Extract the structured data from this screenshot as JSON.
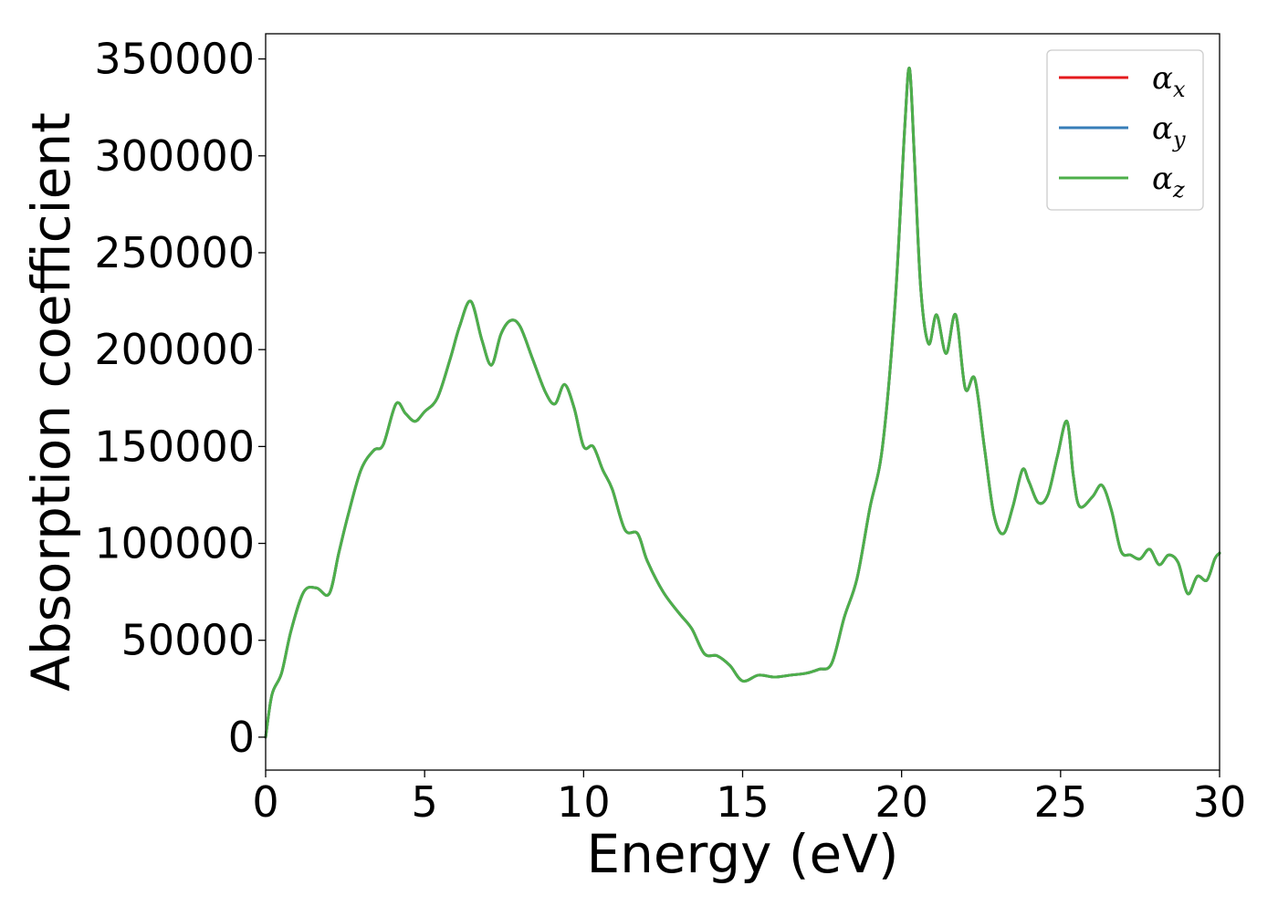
{
  "chart_data": {
    "type": "line",
    "title": "",
    "xlabel": "Energy (eV)",
    "ylabel": "Absorption coefficient",
    "xlim": [
      0,
      30
    ],
    "ylim": [
      -17000,
      363000
    ],
    "xticks": [
      0,
      5,
      10,
      15,
      20,
      25,
      30
    ],
    "xtick_labels": [
      "0",
      "5",
      "10",
      "15",
      "20",
      "25",
      "30"
    ],
    "yticks": [
      0,
      50000,
      100000,
      150000,
      200000,
      250000,
      300000,
      350000
    ],
    "ytick_labels": [
      "0",
      "50000",
      "100000",
      "150000",
      "200000",
      "250000",
      "300000",
      "350000"
    ],
    "grid": false,
    "legend_position": "top-right",
    "x": [
      0,
      0.2,
      0.5,
      0.8,
      1.2,
      1.6,
      2.0,
      2.3,
      2.6,
      3.0,
      3.4,
      3.7,
      4.1,
      4.4,
      4.7,
      5.0,
      5.4,
      5.8,
      6.1,
      6.45,
      6.8,
      7.1,
      7.4,
      7.7,
      8.0,
      8.4,
      8.8,
      9.1,
      9.4,
      9.7,
      10.0,
      10.3,
      10.6,
      10.9,
      11.3,
      11.7,
      12.0,
      12.5,
      13.0,
      13.4,
      13.8,
      14.2,
      14.6,
      15.0,
      15.5,
      16.0,
      16.5,
      17.0,
      17.4,
      17.8,
      18.2,
      18.6,
      19.0,
      19.4,
      19.8,
      20.1,
      20.25,
      20.4,
      20.6,
      20.85,
      21.1,
      21.4,
      21.7,
      22.0,
      22.3,
      22.6,
      22.9,
      23.2,
      23.5,
      23.8,
      24.0,
      24.3,
      24.6,
      24.9,
      25.2,
      25.4,
      25.6,
      26.0,
      26.3,
      26.6,
      26.9,
      27.2,
      27.5,
      27.8,
      28.1,
      28.4,
      28.7,
      29.0,
      29.3,
      29.6,
      29.85,
      30.0
    ],
    "series": [
      {
        "name": "α_x",
        "label_base": "α",
        "label_sub": "x",
        "color": "#e41a1c",
        "values": [
          0,
          22000,
          33000,
          55000,
          75000,
          77000,
          74000,
          95000,
          115000,
          138000,
          148000,
          151000,
          172000,
          167000,
          163000,
          168000,
          175000,
          195000,
          212000,
          225000,
          205000,
          192000,
          208000,
          215000,
          212000,
          195000,
          178000,
          172000,
          182000,
          170000,
          150000,
          150000,
          138000,
          128000,
          107000,
          105000,
          91000,
          75000,
          64000,
          56000,
          43000,
          42000,
          37000,
          29000,
          32000,
          31000,
          32000,
          33000,
          35000,
          38000,
          62000,
          82000,
          118000,
          150000,
          225000,
          315000,
          345000,
          300000,
          232000,
          203000,
          218000,
          198000,
          218000,
          180000,
          185000,
          150000,
          115000,
          105000,
          119000,
          138000,
          132000,
          121000,
          125000,
          145000,
          163000,
          135000,
          119000,
          124000,
          130000,
          117000,
          96000,
          94000,
          92000,
          97000,
          89000,
          94000,
          90000,
          74000,
          83000,
          81000,
          92000,
          95000
        ]
      },
      {
        "name": "α_y",
        "label_base": "α",
        "label_sub": "y",
        "color": "#377eb8",
        "values": [
          0,
          22000,
          33000,
          55000,
          75000,
          77000,
          74000,
          95000,
          115000,
          138000,
          148000,
          151000,
          172000,
          167000,
          163000,
          168000,
          175000,
          195000,
          212000,
          225000,
          205000,
          192000,
          208000,
          215000,
          212000,
          195000,
          178000,
          172000,
          182000,
          170000,
          150000,
          150000,
          138000,
          128000,
          107000,
          105000,
          91000,
          75000,
          64000,
          56000,
          43000,
          42000,
          37000,
          29000,
          32000,
          31000,
          32000,
          33000,
          35000,
          38000,
          62000,
          82000,
          118000,
          150000,
          225000,
          315000,
          345000,
          300000,
          232000,
          203000,
          218000,
          198000,
          218000,
          180000,
          185000,
          150000,
          115000,
          105000,
          119000,
          138000,
          132000,
          121000,
          125000,
          145000,
          163000,
          135000,
          119000,
          124000,
          130000,
          117000,
          96000,
          94000,
          92000,
          97000,
          89000,
          94000,
          90000,
          74000,
          83000,
          81000,
          92000,
          95000
        ]
      },
      {
        "name": "α_z",
        "label_base": "α",
        "label_sub": "z",
        "color": "#4daf4a",
        "values": [
          0,
          22000,
          33000,
          55000,
          75000,
          77000,
          74000,
          95000,
          115000,
          138000,
          148000,
          151000,
          172000,
          167000,
          163000,
          168000,
          175000,
          195000,
          212000,
          225000,
          205000,
          192000,
          208000,
          215000,
          212000,
          195000,
          178000,
          172000,
          182000,
          170000,
          150000,
          150000,
          138000,
          128000,
          107000,
          105000,
          91000,
          75000,
          64000,
          56000,
          43000,
          42000,
          37000,
          29000,
          32000,
          31000,
          32000,
          33000,
          35000,
          38000,
          62000,
          82000,
          118000,
          150000,
          225000,
          315000,
          345000,
          300000,
          232000,
          203000,
          218000,
          198000,
          218000,
          180000,
          185000,
          150000,
          115000,
          105000,
          119000,
          138000,
          132000,
          121000,
          125000,
          145000,
          163000,
          135000,
          119000,
          124000,
          130000,
          117000,
          96000,
          94000,
          92000,
          97000,
          89000,
          94000,
          90000,
          74000,
          83000,
          81000,
          92000,
          95000
        ]
      }
    ]
  }
}
